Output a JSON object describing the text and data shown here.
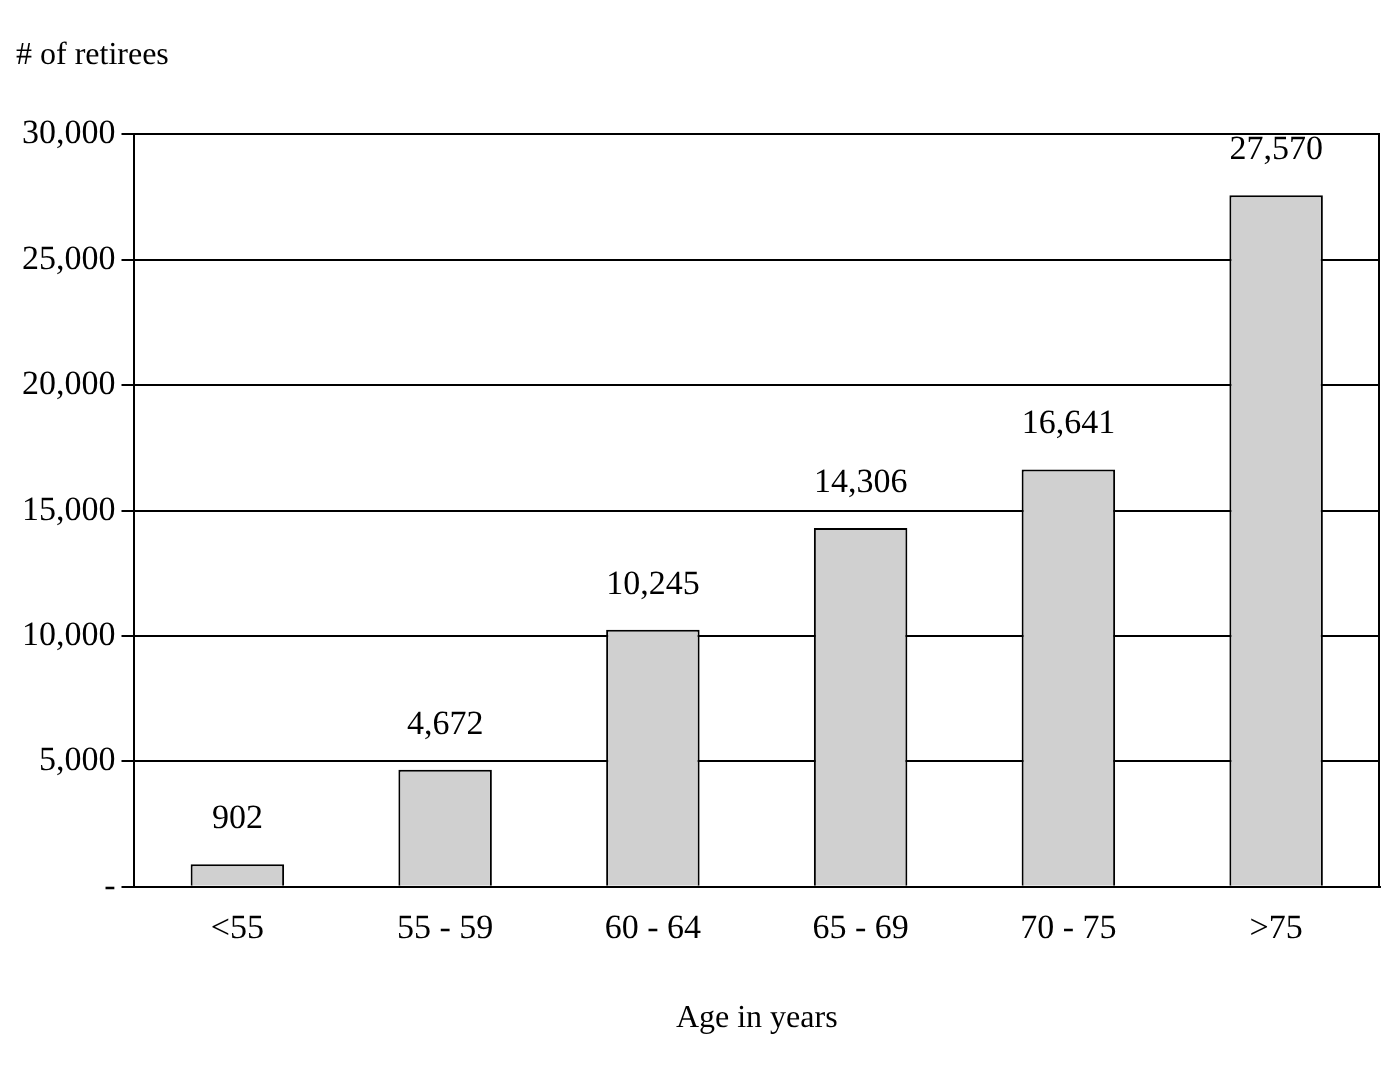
{
  "chart_data": {
    "type": "bar",
    "ylabel": "# of retirees",
    "xlabel": "Age in years",
    "categories": [
      "<55",
      "55 - 59",
      "60 - 64",
      "65 - 69",
      "70 - 75",
      ">75"
    ],
    "values": [
      902,
      4672,
      10245,
      14306,
      16641,
      27570
    ],
    "color": "#d0d0d0",
    "ylim": [
      0,
      30000
    ],
    "yticks": [
      {
        "value": 0,
        "label": "-"
      },
      {
        "value": 5000,
        "label": "5,000"
      },
      {
        "value": 10000,
        "label": "10,000"
      },
      {
        "value": 15000,
        "label": "15,000"
      },
      {
        "value": 20000,
        "label": "20,000"
      },
      {
        "value": 25000,
        "label": "25,000"
      },
      {
        "value": 30000,
        "label": "30,000"
      }
    ],
    "value_labels": [
      "902",
      "4,672",
      "10,245",
      "14,306",
      "16,641",
      "27,570"
    ],
    "grid": "y"
  }
}
